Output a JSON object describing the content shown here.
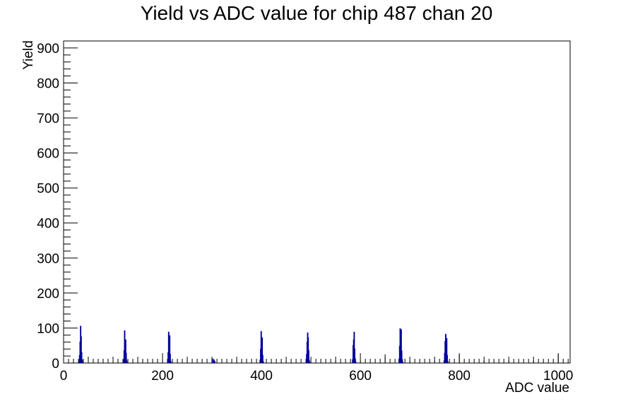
{
  "chart_data": {
    "type": "bar",
    "title": "Yield vs ADC value for chip 487 chan 20",
    "xlabel": "ADC value",
    "ylabel": "Yield",
    "xlim": [
      0,
      1024
    ],
    "ylim": [
      0,
      920
    ],
    "x_ticks": [
      0,
      200,
      400,
      600,
      800,
      1000
    ],
    "y_ticks": [
      0,
      100,
      200,
      300,
      400,
      500,
      600,
      700,
      800,
      900
    ],
    "grid": false,
    "legend": "none",
    "line_color": "#000099",
    "series": [
      {
        "x": [
          31,
          32,
          33,
          34,
          35,
          36,
          37,
          38,
          121,
          122,
          123,
          124,
          125,
          126,
          127,
          128,
          210,
          211,
          212,
          213,
          214,
          215,
          216,
          217,
          300,
          303,
          304,
          305,
          397,
          398,
          399,
          400,
          401,
          402,
          403,
          490,
          491,
          492,
          493,
          494,
          495,
          496,
          497,
          584,
          585,
          586,
          587,
          588,
          589,
          590,
          678,
          679,
          680,
          681,
          682,
          683,
          684,
          685,
          769,
          770,
          771,
          772,
          773,
          774,
          775,
          776
        ],
        "values": [
          5,
          22,
          60,
          105,
          75,
          30,
          8,
          2,
          8,
          35,
          92,
          48,
          66,
          28,
          6,
          1,
          6,
          30,
          88,
          52,
          78,
          25,
          5,
          1,
          12,
          10,
          6,
          4,
          8,
          40,
          90,
          56,
          72,
          22,
          4,
          5,
          25,
          60,
          86,
          72,
          35,
          8,
          2,
          10,
          50,
          66,
          88,
          40,
          12,
          3,
          12,
          48,
          98,
          60,
          95,
          34,
          10,
          2,
          6,
          28,
          62,
          82,
          55,
          70,
          22,
          4
        ],
        "y_step_values": [
          0,
          40,
          60,
          80,
          100,
          120,
          140,
          160,
          180,
          200,
          220,
          240,
          260,
          280,
          300,
          320,
          340,
          360,
          380,
          400,
          420,
          440,
          460,
          480,
          500,
          520,
          540,
          560,
          580,
          600,
          620,
          640,
          660,
          680,
          700,
          720,
          740,
          760,
          780,
          800,
          820,
          840,
          860,
          880,
          900,
          920
        ],
        "isolated_bins": [
          50,
          150,
          200,
          250,
          350,
          450,
          550,
          600,
          650,
          700,
          750,
          800,
          850,
          900,
          950,
          1000
        ],
        "isolated_bin_values": [
          7,
          7,
          10,
          7,
          7,
          7,
          7,
          7,
          25,
          7,
          7,
          25,
          7,
          7,
          7,
          25
        ]
      }
    ]
  }
}
